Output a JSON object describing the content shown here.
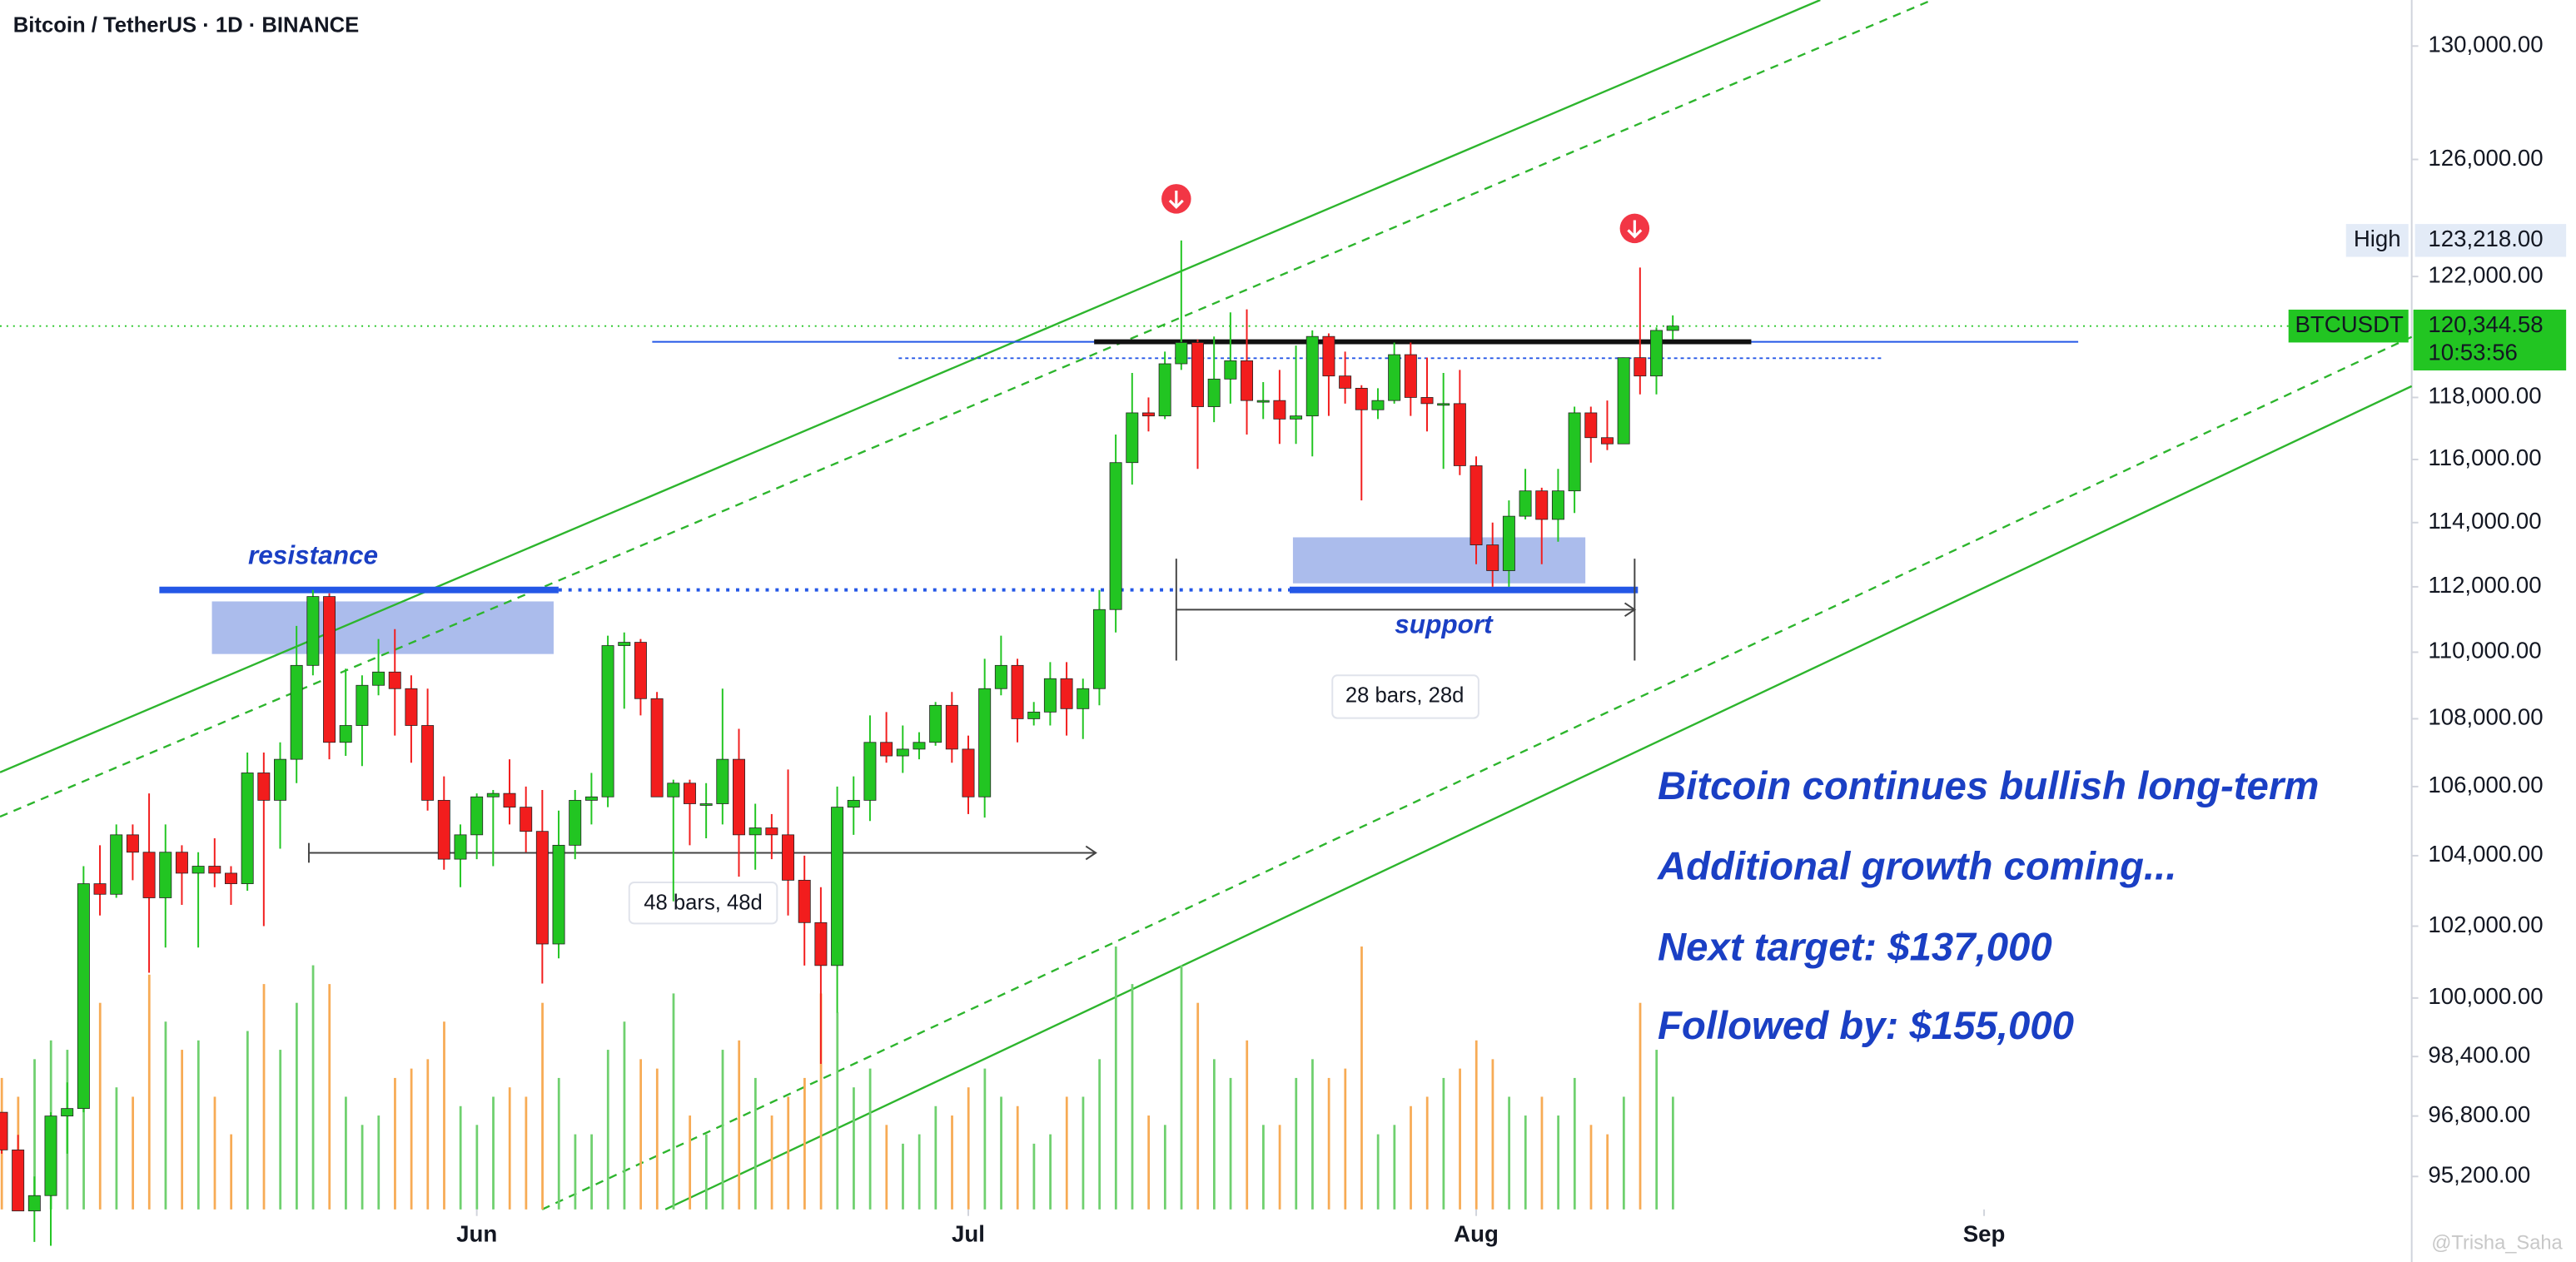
{
  "chart_data": {
    "type": "candlestick",
    "title": "Bitcoin / TetherUS · 1D · BINANCE",
    "up_color": "#22c522",
    "down_color": "#f21d1d",
    "volume_up_color": "#6fd06f",
    "volume_down_color": "#f7ab55",
    "log_scale": true,
    "xlim": [
      -0.1,
      147.1
    ],
    "ylim": [
      94340,
      131660
    ],
    "xticks": [
      {
        "value": 29,
        "label": "Jun"
      },
      {
        "value": 59,
        "label": "Jul"
      },
      {
        "value": 90,
        "label": "Aug"
      },
      {
        "value": 121,
        "label": "Sep"
      }
    ],
    "yticks": [
      {
        "value": 95200,
        "label": "95,200.00"
      },
      {
        "value": 96800,
        "label": "96,800.00"
      },
      {
        "value": 98400,
        "label": "98,400.00"
      },
      {
        "value": 100000,
        "label": "100,000.00"
      },
      {
        "value": 102000,
        "label": "102,000.00"
      },
      {
        "value": 104000,
        "label": "104,000.00"
      },
      {
        "value": 106000,
        "label": "106,000.00"
      },
      {
        "value": 108000,
        "label": "108,000.00"
      },
      {
        "value": 110000,
        "label": "110,000.00"
      },
      {
        "value": 112000,
        "label": "112,000.00"
      },
      {
        "value": 114000,
        "label": "114,000.00"
      },
      {
        "value": 116000,
        "label": "116,000.00"
      },
      {
        "value": 118000,
        "label": "118,000.00"
      },
      {
        "value": 122000,
        "label": "122,000.00"
      },
      {
        "value": 126000,
        "label": "126,000.00"
      },
      {
        "value": 130000,
        "label": "130,000.00"
      }
    ],
    "ohlc": [
      [
        96900,
        96900,
        95800,
        95900
      ],
      [
        95900,
        96300,
        94500,
        94300
      ],
      [
        94300,
        95200,
        93500,
        94700
      ],
      [
        94700,
        96900,
        93400,
        96800
      ],
      [
        96800,
        97700,
        95800,
        97000
      ],
      [
        97000,
        103700,
        96900,
        103200
      ],
      [
        103200,
        104300,
        102300,
        102900
      ],
      [
        102900,
        104900,
        102800,
        104600
      ],
      [
        104600,
        104900,
        103300,
        104100
      ],
      [
        104100,
        105800,
        100700,
        102800
      ],
      [
        102800,
        104900,
        101400,
        104100
      ],
      [
        104100,
        104300,
        102600,
        103500
      ],
      [
        103500,
        104100,
        101400,
        103700
      ],
      [
        103700,
        104500,
        103100,
        103500
      ],
      [
        103500,
        103700,
        102600,
        103200
      ],
      [
        103200,
        107000,
        103000,
        106400
      ],
      [
        106400,
        107000,
        102000,
        105600
      ],
      [
        105600,
        107300,
        104200,
        106800
      ],
      [
        106800,
        110800,
        106100,
        109600
      ],
      [
        109600,
        111900,
        109300,
        111700
      ],
      [
        111700,
        111800,
        106800,
        107300
      ],
      [
        107300,
        109500,
        106900,
        107800
      ],
      [
        107800,
        109300,
        106600,
        109000
      ],
      [
        109000,
        110400,
        108700,
        109400
      ],
      [
        109400,
        110700,
        107500,
        108900
      ],
      [
        108900,
        109300,
        106700,
        107800
      ],
      [
        107800,
        108900,
        105300,
        105600
      ],
      [
        105600,
        106300,
        103600,
        103900
      ],
      [
        103900,
        104900,
        103100,
        104600
      ],
      [
        104600,
        105800,
        103900,
        105700
      ],
      [
        105700,
        105900,
        103700,
        105800
      ],
      [
        105800,
        106800,
        104900,
        105400
      ],
      [
        105400,
        106000,
        104100,
        104700
      ],
      [
        104700,
        105900,
        100400,
        101500
      ],
      [
        101500,
        105300,
        101100,
        104300
      ],
      [
        104300,
        105900,
        103900,
        105600
      ],
      [
        105600,
        106400,
        104900,
        105700
      ],
      [
        105700,
        110500,
        105400,
        110200
      ],
      [
        110200,
        110600,
        108300,
        110300
      ],
      [
        110300,
        110400,
        108100,
        108600
      ],
      [
        108600,
        108800,
        105700,
        105700
      ],
      [
        105700,
        106200,
        102700,
        106100
      ],
      [
        106100,
        106200,
        104300,
        105500
      ],
      [
        105500,
        106100,
        104500,
        105500
      ],
      [
        105500,
        108900,
        104900,
        106800
      ],
      [
        106800,
        107700,
        103400,
        104600
      ],
      [
        104600,
        105500,
        103600,
        104800
      ],
      [
        104800,
        105200,
        103900,
        104600
      ],
      [
        104600,
        106500,
        102300,
        103300
      ],
      [
        103300,
        104000,
        100900,
        102100
      ],
      [
        102100,
        103100,
        98200,
        100900
      ],
      [
        100900,
        106000,
        99600,
        105400
      ],
      [
        105400,
        106300,
        104600,
        105600
      ],
      [
        105600,
        108100,
        105000,
        107300
      ],
      [
        107300,
        108200,
        106700,
        106900
      ],
      [
        106900,
        107800,
        106400,
        107100
      ],
      [
        107100,
        107600,
        106800,
        107300
      ],
      [
        107300,
        108500,
        107200,
        108400
      ],
      [
        108400,
        108800,
        106700,
        107100
      ],
      [
        107100,
        107500,
        105200,
        105700
      ],
      [
        105700,
        109800,
        105100,
        108900
      ],
      [
        108900,
        110500,
        108700,
        109600
      ],
      [
        109600,
        109800,
        107300,
        108000
      ],
      [
        108000,
        108500,
        107800,
        108200
      ],
      [
        108200,
        109700,
        107800,
        109200
      ],
      [
        109200,
        109700,
        107500,
        108300
      ],
      [
        108300,
        109200,
        107400,
        108900
      ],
      [
        108900,
        111900,
        108400,
        111300
      ],
      [
        111300,
        116800,
        110600,
        115900
      ],
      [
        115900,
        118800,
        115200,
        117500
      ],
      [
        117500,
        118000,
        116900,
        117400
      ],
      [
        117400,
        119500,
        117300,
        119100
      ],
      [
        119100,
        123218,
        118900,
        119800
      ],
      [
        119800,
        119900,
        115700,
        117700
      ],
      [
        117700,
        120000,
        117200,
        118600
      ],
      [
        118600,
        120800,
        117800,
        119200
      ],
      [
        119200,
        120900,
        116800,
        117900
      ],
      [
        117900,
        118500,
        117300,
        117900
      ],
      [
        117900,
        118900,
        116500,
        117300
      ],
      [
        117300,
        119700,
        116500,
        117400
      ],
      [
        117400,
        120200,
        116100,
        120000
      ],
      [
        120000,
        120100,
        117400,
        118700
      ],
      [
        118700,
        119500,
        117800,
        118300
      ],
      [
        118300,
        118400,
        114700,
        117600
      ],
      [
        117600,
        118300,
        117300,
        117900
      ],
      [
        117900,
        119800,
        117800,
        119400
      ],
      [
        119400,
        119800,
        117400,
        118000
      ],
      [
        118000,
        119300,
        116900,
        117800
      ],
      [
        117800,
        118800,
        115700,
        117800
      ],
      [
        117800,
        118900,
        115500,
        115800
      ],
      [
        115800,
        116100,
        112700,
        113300
      ],
      [
        113300,
        114000,
        112000,
        112500
      ],
      [
        112500,
        114700,
        112000,
        114200
      ],
      [
        114200,
        115700,
        114100,
        115000
      ],
      [
        115000,
        115100,
        112700,
        114100
      ],
      [
        114100,
        115700,
        113400,
        115000
      ],
      [
        115000,
        117700,
        114300,
        117500
      ],
      [
        117500,
        117700,
        115900,
        116700
      ],
      [
        116700,
        117900,
        116300,
        116500
      ],
      [
        116500,
        119300,
        116500,
        119300
      ],
      [
        119300,
        122300,
        118100,
        118700
      ],
      [
        118700,
        120300,
        118100,
        120200
      ],
      [
        120200,
        120700,
        119900,
        120344.58
      ]
    ],
    "volume": [
      14,
      12,
      16,
      18,
      17,
      28,
      22,
      13,
      12,
      25,
      20,
      17,
      18,
      12,
      8,
      19,
      24,
      17,
      22,
      26,
      24,
      12,
      9,
      10,
      14,
      15,
      16,
      20,
      11,
      9,
      12,
      13,
      12,
      22,
      14,
      8,
      8,
      17,
      20,
      16,
      15,
      23,
      10,
      8,
      17,
      18,
      14,
      10,
      12,
      14,
      23,
      21,
      13,
      15,
      9,
      7,
      8,
      11,
      10,
      13,
      15,
      12,
      11,
      7,
      8,
      12,
      12,
      16,
      28,
      24,
      10,
      9,
      26,
      22,
      16,
      14,
      18,
      9,
      9,
      14,
      16,
      14,
      15,
      28,
      8,
      9,
      11,
      12,
      14,
      15,
      18,
      16,
      12,
      10,
      12,
      10,
      14,
      9,
      8,
      12,
      22,
      17,
      12
    ],
    "high_marker": {
      "name": "High",
      "value": 123218,
      "label": "123,218.00"
    },
    "last_price": {
      "name": "BTCUSDT",
      "value": 120344.58,
      "label": "120,344.58",
      "countdown": "10:53:56"
    },
    "annotations": {
      "resistance": "resistance",
      "support": "support",
      "range1": "48 bars, 48d",
      "range2": "28 bars, 28d",
      "notes": [
        "Bitcoin continues bullish long-term",
        "Additional growth coming...",
        "Next target: $137,000",
        "Followed by: $155,000"
      ],
      "watermark": "@Trisha_Saha"
    }
  }
}
